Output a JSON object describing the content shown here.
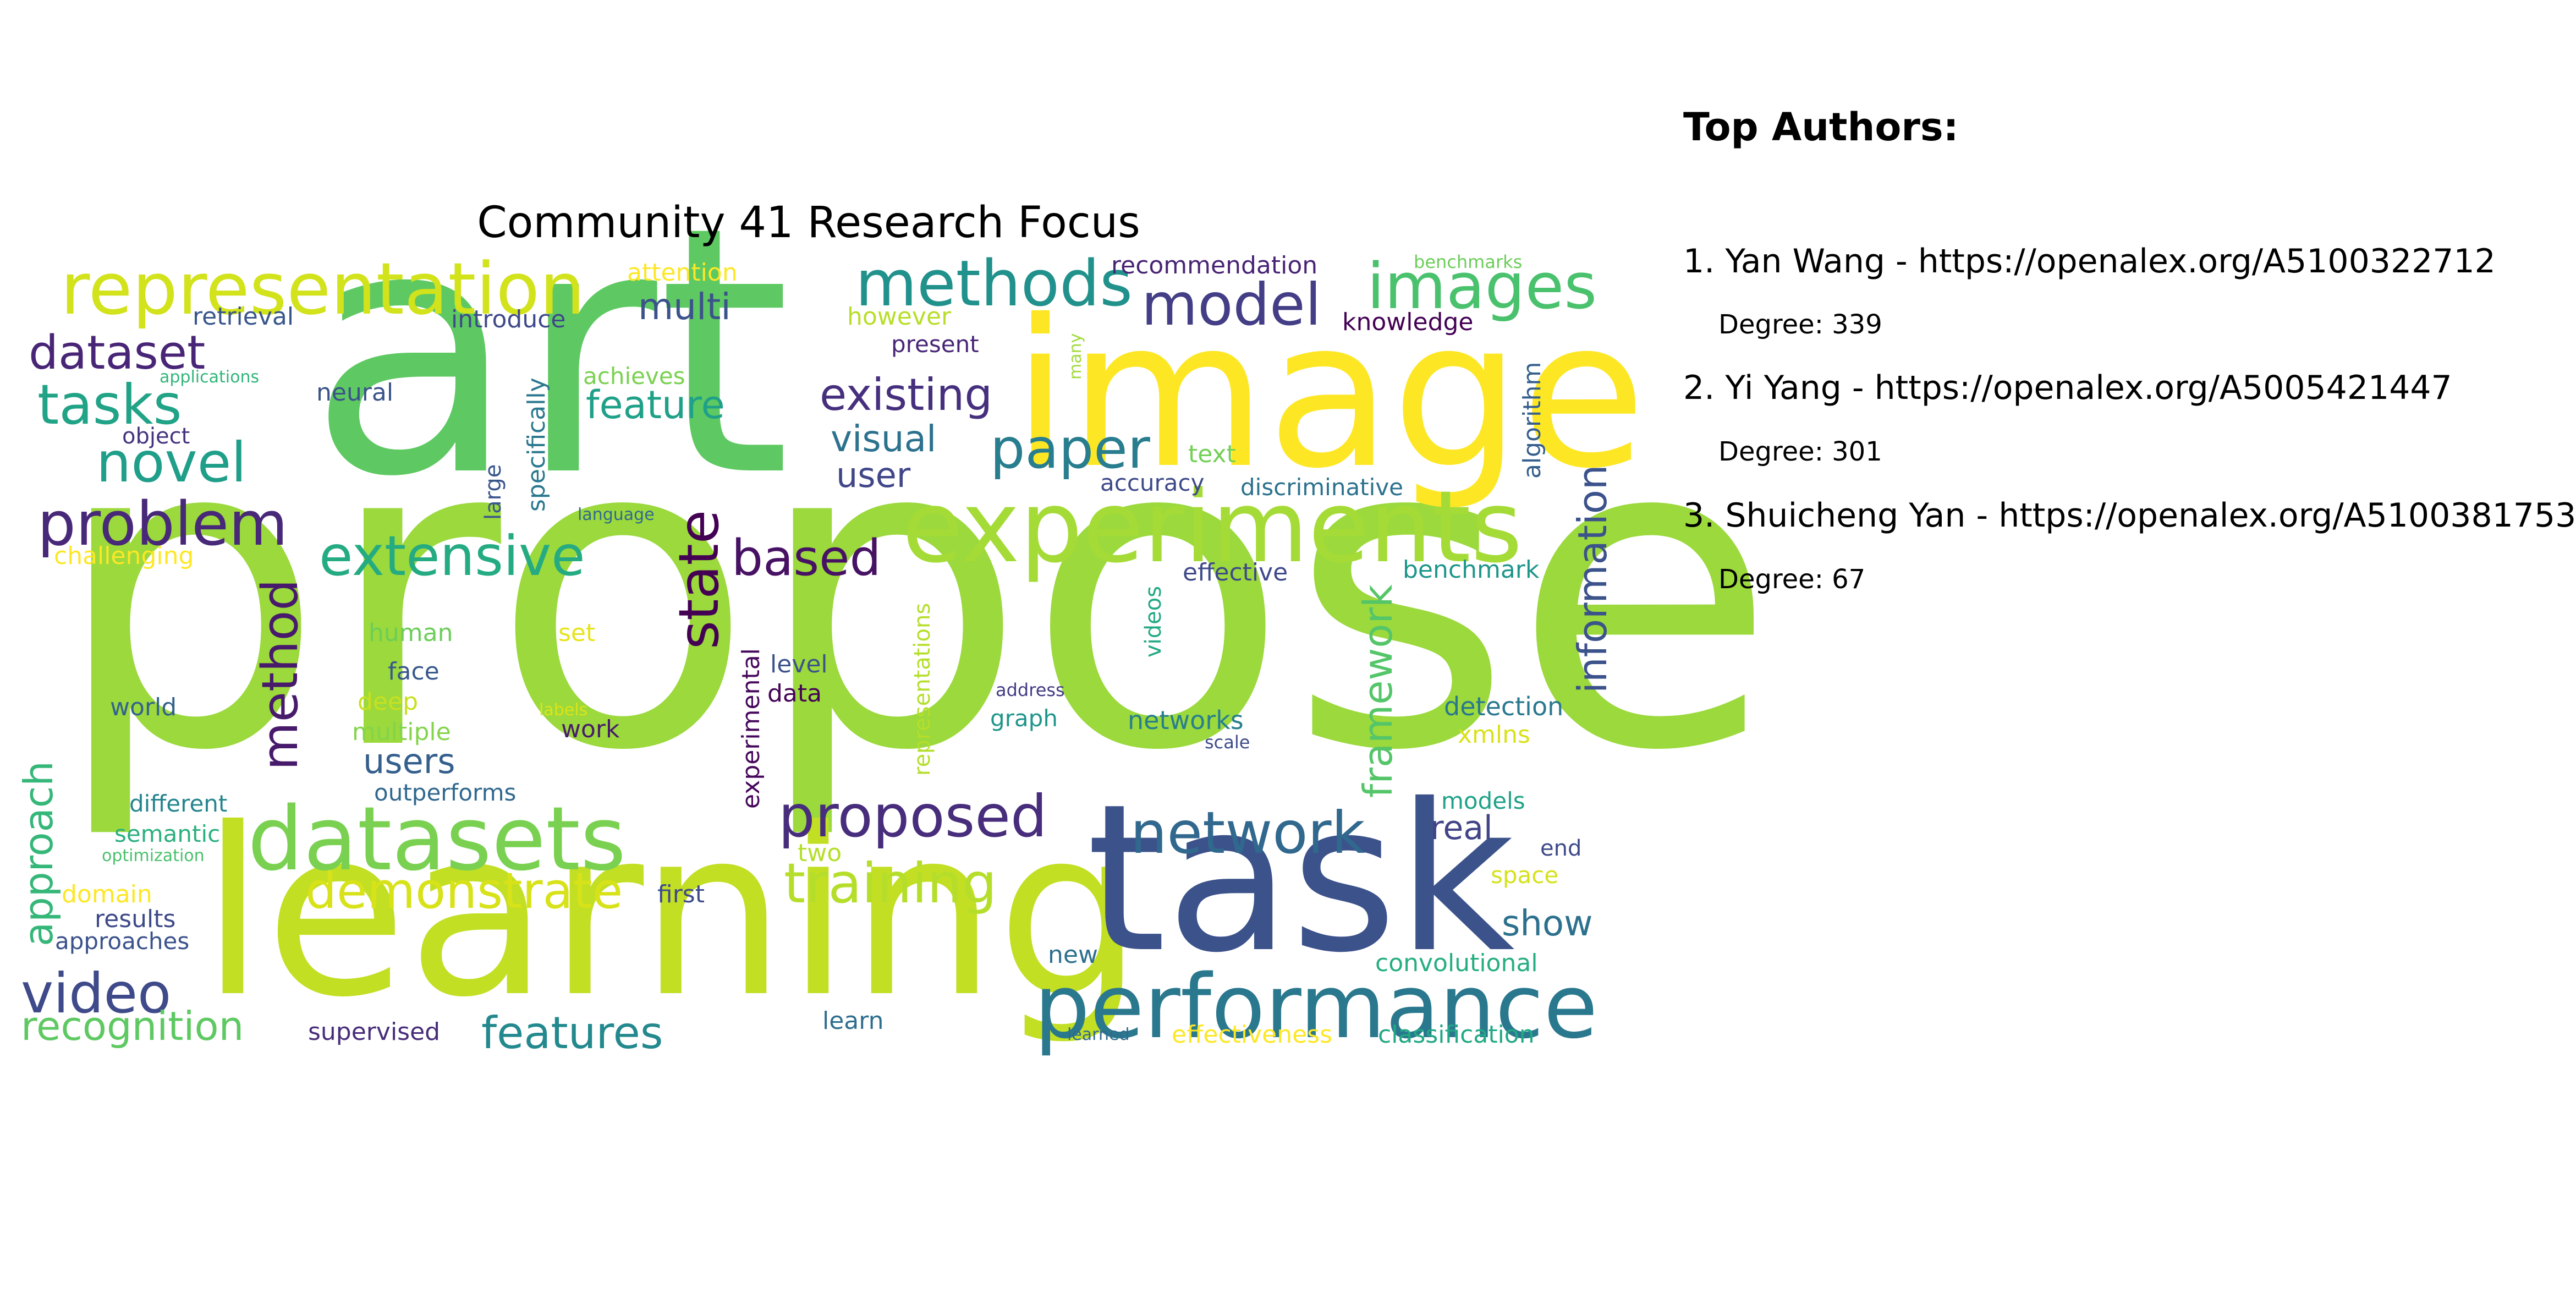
{
  "title": "Community 41 Research Focus",
  "authors_heading": "Top Authors:",
  "authors": [
    {
      "line": "1. Yan Wang - https://openalex.org/A5100322712",
      "degree": "Degree: 339"
    },
    {
      "line": "2. Yi Yang - https://openalex.org/A5005421447",
      "degree": "Degree: 301"
    },
    {
      "line": "3. Shuicheng Yan - https://openalex.org/A5100381753",
      "degree": "Degree: 67"
    }
  ],
  "colormap": "viridis",
  "words": [
    {
      "text": "propose",
      "color": "#9bd93c"
    },
    {
      "text": "art",
      "color": "#5ec962"
    },
    {
      "text": "learning",
      "color": "#c2df23"
    },
    {
      "text": "task",
      "color": "#3b528b"
    },
    {
      "text": "image",
      "color": "#fde725"
    },
    {
      "text": "experiments",
      "color": "#a5db36"
    },
    {
      "text": "performance",
      "color": "#2a788e"
    },
    {
      "text": "datasets",
      "color": "#7ad151"
    },
    {
      "text": "representation",
      "color": "#d2e21b"
    },
    {
      "text": "methods",
      "color": "#21918c"
    },
    {
      "text": "images",
      "color": "#4ac16d"
    },
    {
      "text": "model",
      "color": "#433e85"
    },
    {
      "text": "problem",
      "color": "#482878"
    },
    {
      "text": "extensive",
      "color": "#25ab82"
    },
    {
      "text": "proposed",
      "color": "#472d7b"
    },
    {
      "text": "network",
      "color": "#31688e"
    },
    {
      "text": "video",
      "color": "#3e4a89"
    },
    {
      "text": "dataset",
      "color": "#482576"
    },
    {
      "text": "tasks",
      "color": "#20a386"
    },
    {
      "text": "novel",
      "color": "#1f9e89"
    },
    {
      "text": "state",
      "color": "#440154"
    },
    {
      "text": "method",
      "color": "#481a6c"
    },
    {
      "text": "existing",
      "color": "#46307e"
    },
    {
      "text": "paper",
      "color": "#287d8e"
    },
    {
      "text": "based",
      "color": "#471164"
    },
    {
      "text": "training",
      "color": "#b5de2b"
    },
    {
      "text": "demonstrate",
      "color": "#d8e219"
    },
    {
      "text": "features",
      "color": "#23898e"
    },
    {
      "text": "recognition",
      "color": "#5ec962"
    },
    {
      "text": "approach",
      "color": "#35b779"
    },
    {
      "text": "framework",
      "color": "#54c568"
    },
    {
      "text": "information",
      "color": "#3b528b"
    },
    {
      "text": "feature",
      "color": "#1fa088"
    },
    {
      "text": "multi",
      "color": "#3b528b"
    },
    {
      "text": "visual",
      "color": "#2c728e"
    },
    {
      "text": "user",
      "color": "#404688"
    },
    {
      "text": "users",
      "color": "#355f8d"
    },
    {
      "text": "real",
      "color": "#414487"
    },
    {
      "text": "show",
      "color": "#2d708e"
    },
    {
      "text": "attention",
      "color": "#fde725"
    },
    {
      "text": "recommendation",
      "color": "#482475"
    },
    {
      "text": "benchmarks",
      "color": "#6ccd5a"
    },
    {
      "text": "retrieval",
      "color": "#39568c"
    },
    {
      "text": "introduce",
      "color": "#3e4989"
    },
    {
      "text": "however",
      "color": "#b8de29"
    },
    {
      "text": "present",
      "color": "#482677"
    },
    {
      "text": "knowledge",
      "color": "#440154"
    },
    {
      "text": "many",
      "color": "#a0da39"
    },
    {
      "text": "applications",
      "color": "#32b67a"
    },
    {
      "text": "neural",
      "color": "#3b528b"
    },
    {
      "text": "object",
      "color": "#46337f"
    },
    {
      "text": "specifically",
      "color": "#2a788e"
    },
    {
      "text": "large",
      "color": "#39568c"
    },
    {
      "text": "language",
      "color": "#306a8e"
    },
    {
      "text": "text",
      "color": "#73d056"
    },
    {
      "text": "accuracy",
      "color": "#3e4a89"
    },
    {
      "text": "discriminative",
      "color": "#2c728e"
    },
    {
      "text": "algorithm",
      "color": "#355f8d"
    },
    {
      "text": "challenging",
      "color": "#fde725"
    },
    {
      "text": "effective",
      "color": "#3e4989"
    },
    {
      "text": "benchmark",
      "color": "#1f968b"
    },
    {
      "text": "human",
      "color": "#6ccd5a"
    },
    {
      "text": "set",
      "color": "#e7e419"
    },
    {
      "text": "face",
      "color": "#38598c"
    },
    {
      "text": "achieves",
      "color": "#7ad151"
    },
    {
      "text": "deep",
      "color": "#c8e020"
    },
    {
      "text": "multiple",
      "color": "#84d44b"
    },
    {
      "text": "labels",
      "color": "#dde318"
    },
    {
      "text": "work",
      "color": "#481a6c"
    },
    {
      "text": "world",
      "color": "#33638d"
    },
    {
      "text": "experimental",
      "color": "#46085c"
    },
    {
      "text": "representations",
      "color": "#b5de2b"
    },
    {
      "text": "videos",
      "color": "#22a884"
    },
    {
      "text": "level",
      "color": "#3b528b"
    },
    {
      "text": "data",
      "color": "#450457"
    },
    {
      "text": "address",
      "color": "#443b84"
    },
    {
      "text": "graph",
      "color": "#1f968b"
    },
    {
      "text": "networks",
      "color": "#277f8e"
    },
    {
      "text": "scale",
      "color": "#3e4c8a"
    },
    {
      "text": "detection",
      "color": "#2a788e"
    },
    {
      "text": "xmlns",
      "color": "#d8e219"
    },
    {
      "text": "different",
      "color": "#25858e"
    },
    {
      "text": "outperforms",
      "color": "#31688e"
    },
    {
      "text": "models",
      "color": "#1fa287"
    },
    {
      "text": "semantic",
      "color": "#2ab07f"
    },
    {
      "text": "optimization",
      "color": "#4ac16d"
    },
    {
      "text": "two",
      "color": "#b5de2b"
    },
    {
      "text": "first",
      "color": "#3e4a89"
    },
    {
      "text": "end",
      "color": "#3e4989"
    },
    {
      "text": "space",
      "color": "#d5e21a"
    },
    {
      "text": "domain",
      "color": "#fde725"
    },
    {
      "text": "results",
      "color": "#3e4989"
    },
    {
      "text": "approaches",
      "color": "#3b528b"
    },
    {
      "text": "new",
      "color": "#2d708e"
    },
    {
      "text": "convolutional",
      "color": "#26ad81"
    },
    {
      "text": "supervised",
      "color": "#472c7a"
    },
    {
      "text": "learn",
      "color": "#2e6e8e"
    },
    {
      "text": "learned",
      "color": "#306a8e"
    },
    {
      "text": "effectiveness",
      "color": "#fde725"
    },
    {
      "text": "classification",
      "color": "#22a884"
    }
  ]
}
